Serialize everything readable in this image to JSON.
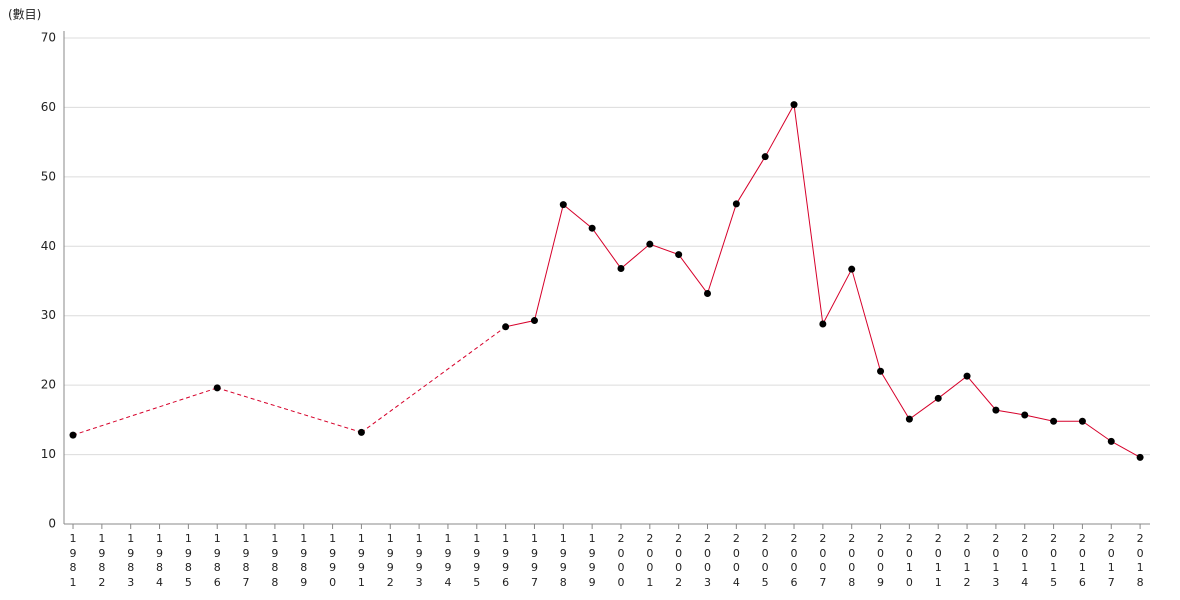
{
  "chart_data": {
    "type": "line",
    "y_label": "(數目)",
    "categories": [
      "1981",
      "1982",
      "1983",
      "1984",
      "1985",
      "1986",
      "1987",
      "1988",
      "1989",
      "1990",
      "1991",
      "1992",
      "1993",
      "1994",
      "1995",
      "1996",
      "1997",
      "1998",
      "1999",
      "2000",
      "2001",
      "2002",
      "2003",
      "2004",
      "2005",
      "2006",
      "2007",
      "2008",
      "2009",
      "2010",
      "2011",
      "2012",
      "2013",
      "2014",
      "2015",
      "2016",
      "2017",
      "2018"
    ],
    "series": [
      {
        "color": "#d6002a",
        "values": [
          12.8,
          null,
          null,
          null,
          null,
          19.6,
          null,
          null,
          null,
          null,
          13.2,
          null,
          null,
          null,
          null,
          28.4,
          29.3,
          46.0,
          42.6,
          36.8,
          40.3,
          38.8,
          33.2,
          46.1,
          52.9,
          60.4,
          28.8,
          36.7,
          22.0,
          15.1,
          18.1,
          21.3,
          16.4,
          15.7,
          14.8,
          14.8,
          11.9,
          9.6
        ]
      }
    ],
    "ylim": [
      0,
      71
    ],
    "yticks": [
      0,
      10,
      20,
      30,
      40,
      50,
      60,
      70
    ],
    "grid": true
  }
}
